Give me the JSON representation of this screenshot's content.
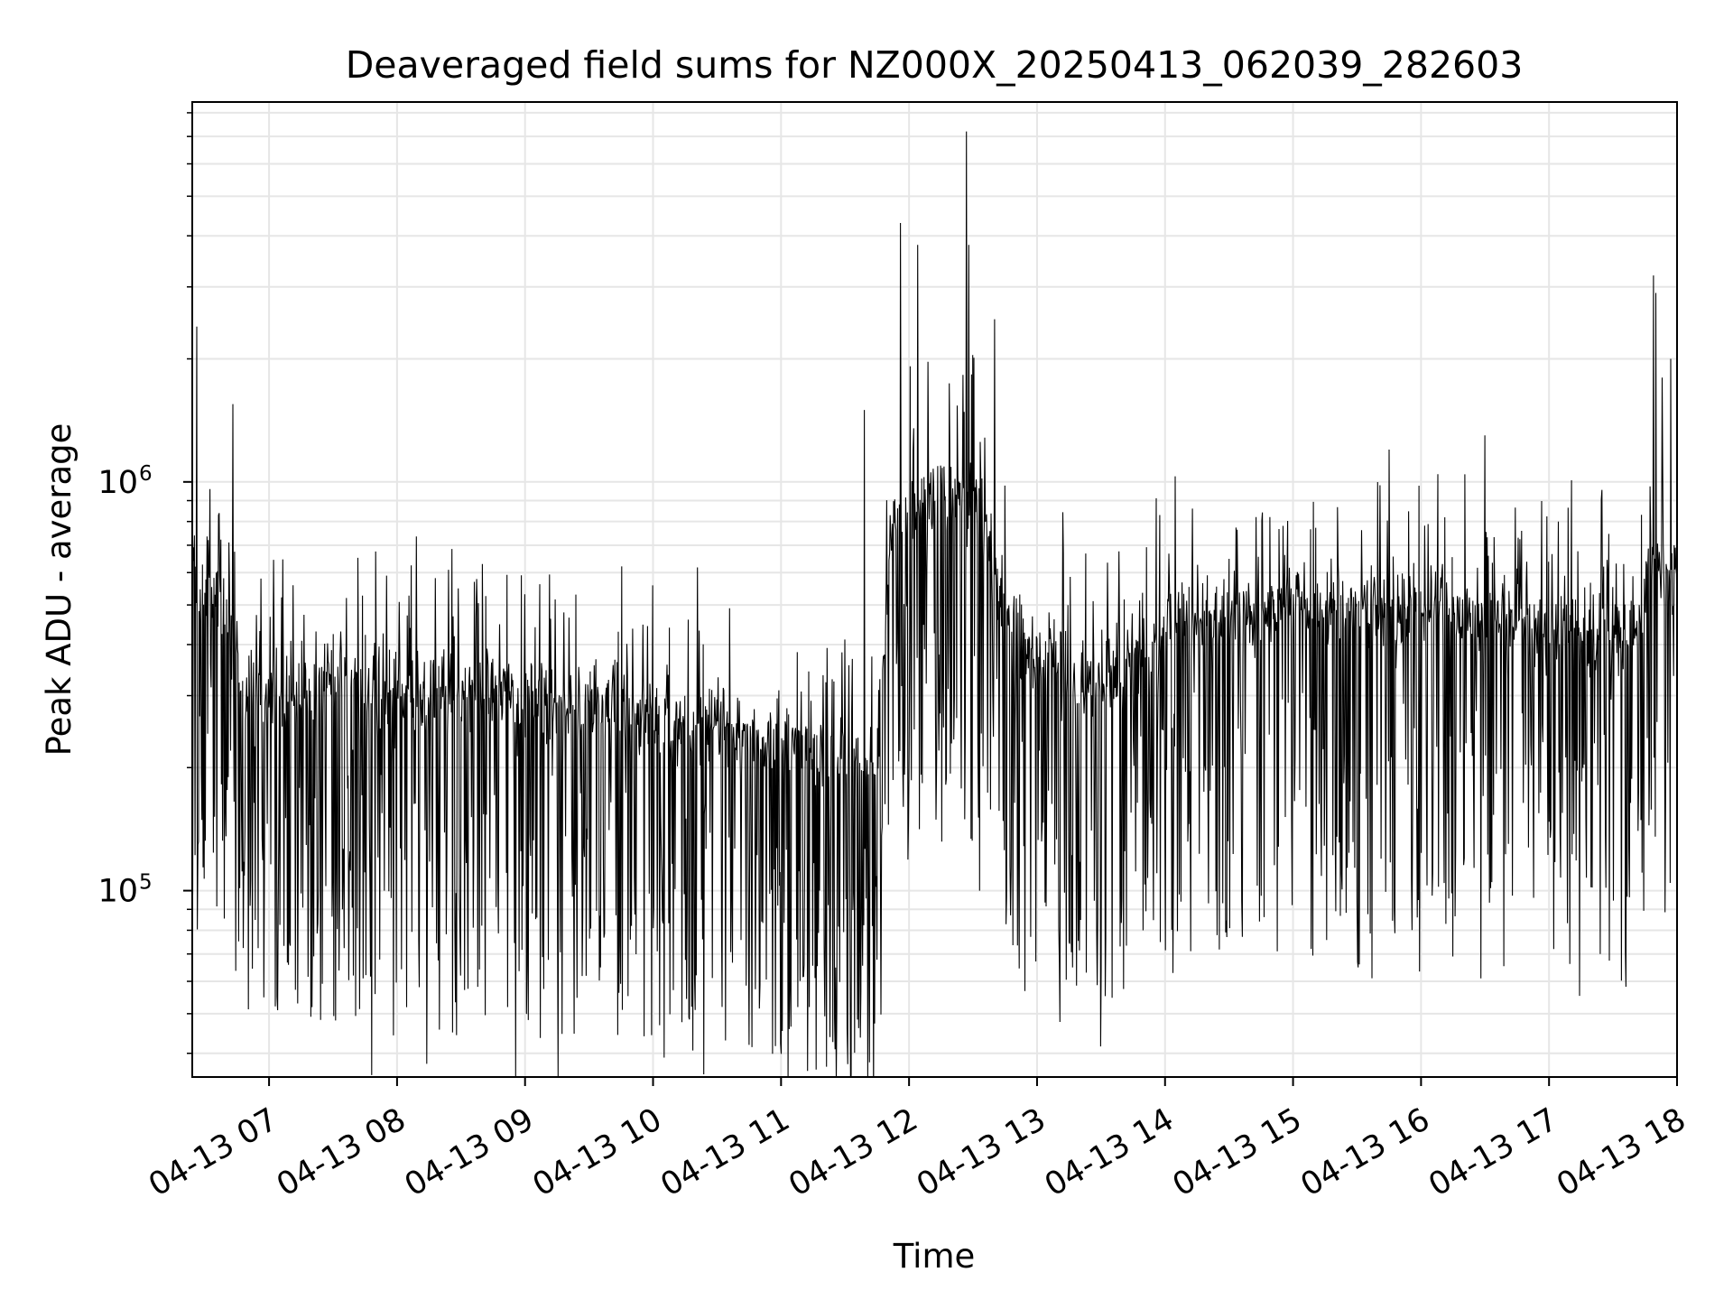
{
  "chart_data": {
    "type": "line",
    "title": "Deaveraged field sums for NZ000X_20250413_062039_282603",
    "xlabel": "Time",
    "ylabel": "Peak ADU - average",
    "x_ticks": [
      "04-13 07",
      "04-13 08",
      "04-13 09",
      "04-13 10",
      "04-13 11",
      "04-13 12",
      "04-13 13",
      "04-13 14",
      "04-13 15",
      "04-13 16",
      "04-13 17",
      "04-13 18"
    ],
    "y_ticks": [
      {
        "base": "10",
        "exp": "5",
        "value": 100000
      },
      {
        "base": "10",
        "exp": "6",
        "value": 1000000
      }
    ],
    "xlim": [
      "2025-04-13 06:24",
      "2025-04-13 18:00"
    ],
    "ylim": [
      35000,
      8500000
    ],
    "yscale": "log",
    "grid": true,
    "series_color": "#000000",
    "baseline_profile": {
      "time": [
        "2025-04-13 06:21",
        "2025-04-13 06:40",
        "2025-04-13 06:48",
        "2025-04-13 07:40",
        "2025-04-13 08:30",
        "2025-04-13 09:30",
        "2025-04-13 10:30",
        "2025-04-13 11:15",
        "2025-04-13 11:45",
        "2025-04-13 11:52",
        "2025-04-13 12:10",
        "2025-04-13 12:30",
        "2025-04-13 12:50",
        "2025-04-13 13:30",
        "2025-04-13 14:00",
        "2025-04-13 15:00",
        "2025-04-13 16:00",
        "2025-04-13 17:00",
        "2025-04-13 17:40",
        "2025-04-13 17:48",
        "2025-04-13 18:00"
      ],
      "value": [
        600000,
        500000,
        300000,
        330000,
        300000,
        290000,
        250000,
        220000,
        200000,
        800000,
        950000,
        900000,
        400000,
        320000,
        450000,
        500000,
        500000,
        450000,
        420000,
        650000,
        600000
      ]
    },
    "spikes": [
      {
        "x": "2025-04-13 06:26",
        "y": 2400000
      },
      {
        "x": "2025-04-13 06:43",
        "y": 1550000
      },
      {
        "x": "2025-04-13 11:39",
        "y": 1500000
      },
      {
        "x": "2025-04-13 11:56",
        "y": 4300000
      },
      {
        "x": "2025-04-13 12:04",
        "y": 3800000
      },
      {
        "x": "2025-04-13 12:27",
        "y": 7200000
      },
      {
        "x": "2025-04-13 12:28",
        "y": 3800000
      },
      {
        "x": "2025-04-13 12:40",
        "y": 2500000
      },
      {
        "x": "2025-04-13 15:45",
        "y": 1200000
      },
      {
        "x": "2025-04-13 16:30",
        "y": 1300000
      },
      {
        "x": "2025-04-13 17:49",
        "y": 3200000
      },
      {
        "x": "2025-04-13 17:50",
        "y": 2900000
      },
      {
        "x": "2025-04-13 17:53",
        "y": 1800000
      },
      {
        "x": "2025-04-13 17:57",
        "y": 2000000
      }
    ],
    "dips": [
      {
        "x": "2025-04-13 07:04",
        "y": 51000
      },
      {
        "x": "2025-04-13 08:26",
        "y": 45000
      },
      {
        "x": "2025-04-13 10:34",
        "y": 43000
      },
      {
        "x": "2025-04-13 11:31",
        "y": 46000
      },
      {
        "x": "2025-04-13 12:33",
        "y": 100000
      },
      {
        "x": "2025-04-13 13:23",
        "y": 63000
      },
      {
        "x": "2025-04-13 15:31",
        "y": 66000
      },
      {
        "x": "2025-04-13 16:15",
        "y": 69000
      },
      {
        "x": "2025-04-13 17:24",
        "y": 70000
      }
    ]
  }
}
